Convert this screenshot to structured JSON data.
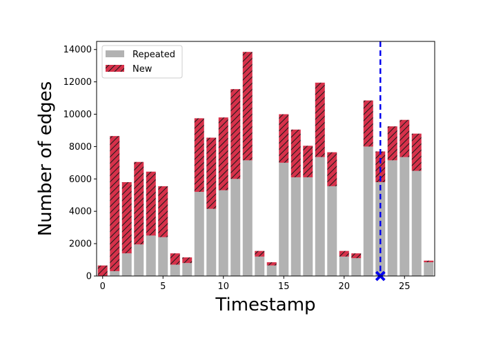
{
  "chart_data": {
    "type": "bar",
    "stacked": true,
    "xlabel": "Timestamp",
    "ylabel": "Number of edges",
    "xlim": [
      -0.5,
      27.5
    ],
    "ylim": [
      0,
      14500
    ],
    "xticks": [
      0,
      5,
      10,
      15,
      20,
      25
    ],
    "yticks": [
      0,
      2000,
      4000,
      6000,
      8000,
      10000,
      12000,
      14000
    ],
    "x": [
      0,
      1,
      2,
      3,
      4,
      5,
      6,
      7,
      8,
      9,
      10,
      11,
      12,
      13,
      14,
      15,
      16,
      17,
      18,
      19,
      20,
      21,
      22,
      23,
      24,
      25,
      26,
      27
    ],
    "series": [
      {
        "name": "Repeated",
        "color": "#b2b2b2",
        "values": [
          0,
          300,
          1400,
          1950,
          2500,
          2400,
          700,
          800,
          5200,
          4150,
          5300,
          6000,
          7150,
          1200,
          650,
          7000,
          6100,
          6100,
          7350,
          5550,
          1200,
          1100,
          8000,
          5800,
          7150,
          7350,
          6500,
          850
        ]
      },
      {
        "name": "New",
        "color": "#d6314a",
        "hatch": "diagonal",
        "values": [
          650,
          8350,
          4400,
          5100,
          3950,
          3150,
          700,
          350,
          4550,
          4400,
          4500,
          5550,
          6700,
          350,
          200,
          3000,
          2950,
          1950,
          4600,
          2100,
          350,
          300,
          2850,
          1900,
          2100,
          2300,
          2300,
          100
        ]
      }
    ],
    "marker": {
      "x": 23,
      "style": "dashed-vertical-line",
      "color": "#0000ee",
      "symbol": "X"
    },
    "legend": {
      "placement": "top-left",
      "entries": [
        "Repeated",
        "New"
      ]
    },
    "grid": false
  }
}
